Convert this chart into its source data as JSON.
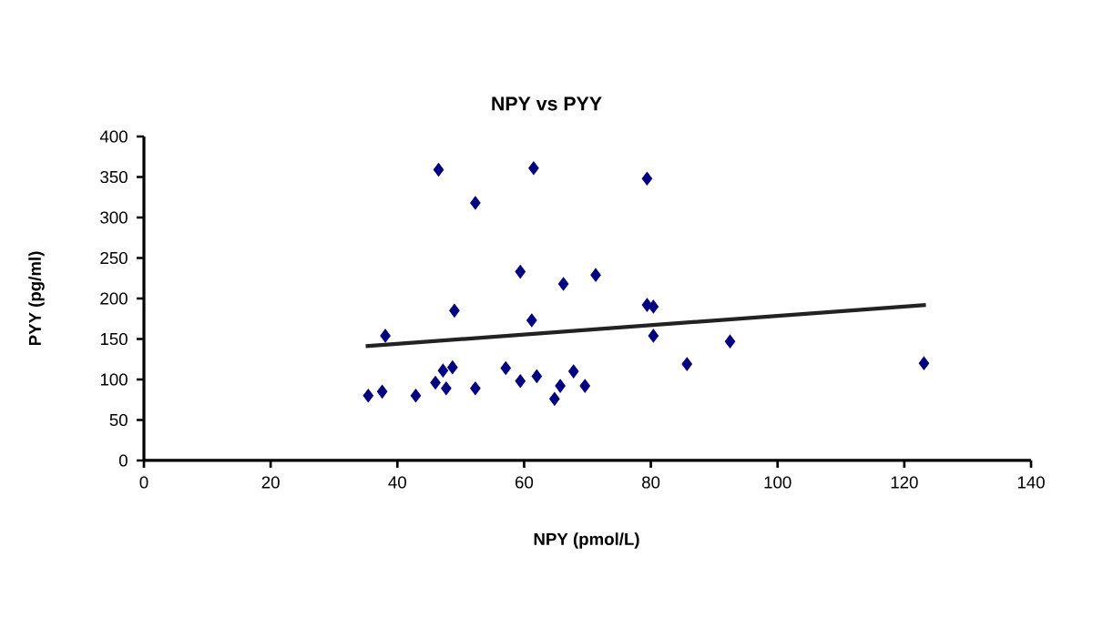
{
  "chart_data": {
    "type": "scatter",
    "title": "NPY vs PYY",
    "xlabel": "NPY (pmol/L)",
    "ylabel": "PYY (pg/ml)",
    "xlim": [
      0,
      140
    ],
    "xticks": [
      0,
      20,
      40,
      60,
      80,
      100,
      120,
      140
    ],
    "ylim": [
      0,
      400
    ],
    "yticks": [
      0,
      50,
      100,
      150,
      200,
      250,
      300,
      350,
      400
    ],
    "grid": false,
    "marker": "diamond",
    "series": [
      {
        "color": "#000080",
        "x": [
          35.4,
          37.6,
          38.1,
          42.9,
          46.5,
          46.0,
          47.2,
          48.7,
          47.7,
          49.0,
          52.3,
          52.3,
          57.1,
          59.4,
          59.4,
          61.5,
          61.2,
          62.0,
          64.8,
          65.7,
          66.2,
          67.8,
          69.6,
          71.3,
          79.4,
          79.4,
          80.4,
          80.4,
          85.7,
          92.5,
          123.1
        ],
        "values": [
          80,
          85,
          154,
          80,
          359,
          96,
          111,
          115,
          89,
          185,
          318,
          89,
          114,
          233,
          98,
          361,
          173,
          104,
          76,
          92,
          218,
          110,
          92,
          229,
          348,
          192,
          190,
          154,
          119,
          147,
          120
        ]
      },
      {
        "type": "line",
        "color": "#222222",
        "line_style": "solid",
        "marker": "none",
        "x": [
          35,
          123.4
        ],
        "values": [
          141,
          192
        ]
      }
    ]
  }
}
